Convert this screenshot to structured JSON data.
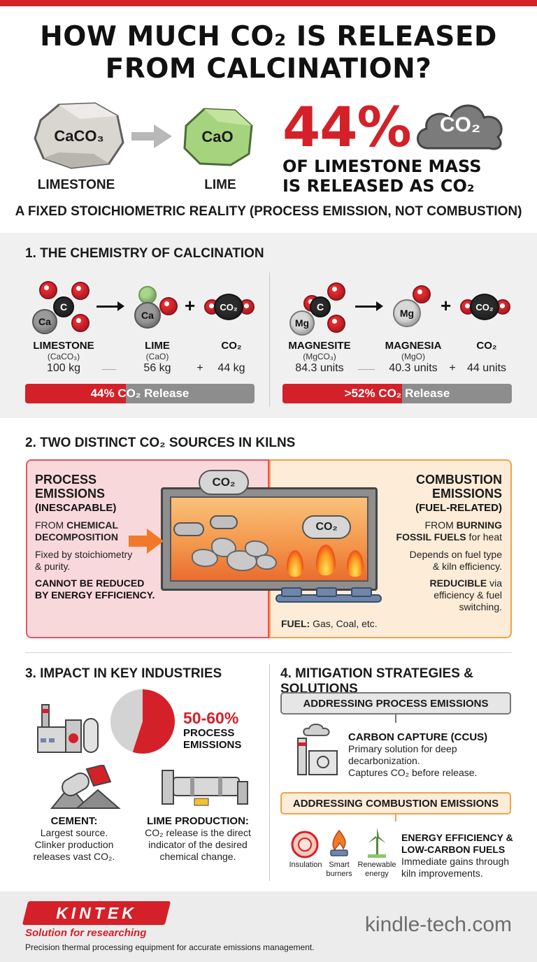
{
  "header": {
    "title_line1": "HOW MUCH CO₂ IS RELEASED",
    "title_line2": "FROM CALCINATION?"
  },
  "hero": {
    "limestone_formula": "CaCO₃",
    "limestone_label": "LIMESTONE",
    "lime_formula": "CaO",
    "lime_label": "LIME",
    "percent": "44%",
    "cloud_label": "CO₂",
    "line1": "OF LIMESTONE MASS",
    "line2": "IS RELEASED AS CO₂",
    "subtitle": "A FIXED STOICHIOMETRIC REALITY (PROCESS EMISSION, NOT COMBUSTION)"
  },
  "section1": {
    "heading": "1. THE CHEMISTRY OF CALCINATION",
    "left": {
      "atoms": {
        "ca": "Ca",
        "c": "C",
        "co2": "CO₂"
      },
      "reactant_name": "LIMESTONE",
      "reactant_formula": "(CaCO₃)",
      "reactant_value": "100 kg",
      "product_name": "LIME",
      "product_formula": "(CaO)",
      "product_value": "56 kg",
      "gas_name": "CO₂",
      "gas_value": "44 kg",
      "plus": "+",
      "bar_label": "44% CO₂ Release",
      "bar_fraction": 0.44
    },
    "right": {
      "atoms": {
        "mg": "Mg",
        "c": "C",
        "co2": "CO₂"
      },
      "reactant_name": "MAGNESITE",
      "reactant_formula": "(MgCO₃)",
      "reactant_value": "84.3 units",
      "product_name": "MAGNESIA",
      "product_formula": "(MgO)",
      "product_value": "40.3 units",
      "gas_name": "CO₂",
      "gas_value": "44 units",
      "plus": "+",
      "bar_label": ">52% CO₂ Release",
      "bar_fraction": 0.52
    }
  },
  "section2": {
    "heading": "2. TWO DISTINCT CO₂ SOURCES IN KILNS",
    "process": {
      "title1": "PROCESS",
      "title2": "EMISSIONS",
      "title3": "(INESCAPABLE)",
      "from_prefix": "FROM ",
      "from_bold1": "CHEMICAL",
      "from_bold2": "DECOMPOSITION",
      "fixed1": "Fixed by stoichiometry",
      "fixed2": "& purity.",
      "cannot1": "CANNOT BE REDUCED",
      "cannot2": "BY ENERGY EFFICIENCY."
    },
    "combustion": {
      "title1": "COMBUSTION",
      "title2": "EMISSIONS",
      "title3": "(FUEL-RELATED)",
      "from_prefix": "FROM ",
      "from_bold1": "BURNING",
      "from_bold2": "FOSSIL FUELS",
      "from_suffix": " for heat",
      "depends1": "Depends on fuel type",
      "depends2": "& kiln efficiency.",
      "reducible_bold": "REDUCIBLE",
      "reducible_rest": " via",
      "reducible2": "efficiency & fuel",
      "reducible3": "switching."
    },
    "cloud_top": "CO₂",
    "cloud_inner": "CO₂",
    "fuel_bold": "FUEL:",
    "fuel_text": " Gas, Coal, etc."
  },
  "section3": {
    "heading": "3. IMPACT IN KEY INDUSTRIES",
    "stat_value": "50-60%",
    "stat_line1": "PROCESS",
    "stat_line2": "EMISSIONS",
    "stat_fraction": 0.55,
    "cement_title": "CEMENT:",
    "cement_line1": "Largest source.",
    "cement_line2": "Clinker production",
    "cement_line3": "releases vast CO₂.",
    "lime_title": "LIME PRODUCTION:",
    "lime_line1": "CO₂ release is the direct",
    "lime_line2": "indicator of the desired",
    "lime_line3": "chemical change."
  },
  "section4": {
    "heading": "4. MITIGATION STRATEGIES & SOLUTIONS",
    "process_box": "ADDRESSING PROCESS EMISSIONS",
    "ccus_title": "CARBON CAPTURE (CCUS)",
    "ccus_line1": "Primary solution for deep",
    "ccus_line2": "decarbonization.",
    "ccus_line3": "Captures CO₂ before release.",
    "combustion_box": "ADDRESSING COMBUSTION EMISSIONS",
    "icon1_label": "Insulation",
    "icon2_label1": "Smart",
    "icon2_label2": "burners",
    "icon3_label1": "Renewable",
    "icon3_label2": "energy",
    "ee_title1": "ENERGY EFFICIENCY &",
    "ee_title2": "LOW-CARBON FUELS",
    "ee_line1": "Immediate gains through",
    "ee_line2": "kiln improvements."
  },
  "footer": {
    "logo": "KINTEK",
    "tagline": "Solution for researching",
    "description": "Precision thermal processing equipment for accurate emissions management.",
    "website": "kindle-tech.com"
  },
  "colors": {
    "accent_red": "#d42028",
    "orange": "#f0a24a",
    "grey": "#8d8d8d"
  }
}
